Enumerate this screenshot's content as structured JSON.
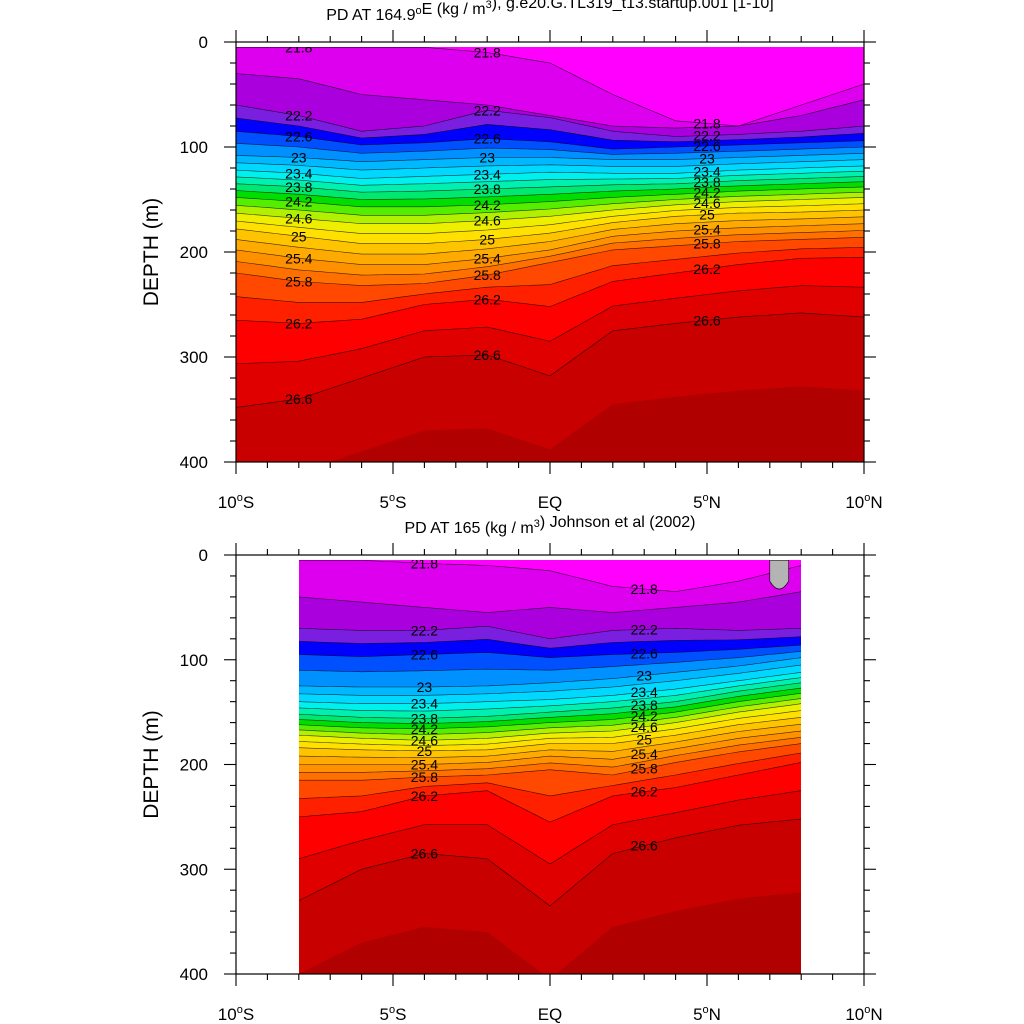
{
  "chart_data": [
    {
      "type": "contour",
      "title_pre": "PD AT 164.9",
      "title_sup1": "o",
      "title_mid": "E (kg / m",
      "title_sup2": "3",
      "title_post": "), g.e20.G.TL319_t13.startup.001 [1-10]",
      "ylabel": "DEPTH (m)",
      "xlim": [
        -10,
        10
      ],
      "ylim": [
        400,
        0
      ],
      "y_reversed": true,
      "x_ticks": [
        {
          "value": -10,
          "num": "10",
          "hemi": "S"
        },
        {
          "value": -5,
          "num": "5",
          "hemi": "S"
        },
        {
          "value": 0,
          "num": "EQ",
          "hemi": ""
        },
        {
          "value": 5,
          "num": "5",
          "hemi": "N"
        },
        {
          "value": 10,
          "num": "10",
          "hemi": "N"
        }
      ],
      "y_ticks": [
        0,
        100,
        200,
        300,
        400
      ],
      "data_lon_range": [
        -10,
        10
      ],
      "levels": [
        21.8,
        22.0,
        22.2,
        22.4,
        22.6,
        22.8,
        23.0,
        23.2,
        23.4,
        23.6,
        23.8,
        24.0,
        24.2,
        24.4,
        24.6,
        24.8,
        25.0,
        25.2,
        25.4,
        25.6,
        25.8,
        26.0,
        26.2,
        26.4,
        26.6,
        26.8
      ],
      "colors": [
        "#ff00ff",
        "#dd00ee",
        "#aa00dd",
        "#7a1fe0",
        "#0000ff",
        "#0050ff",
        "#0090ff",
        "#00b8ff",
        "#00d8ff",
        "#00f0ee",
        "#00f0b0",
        "#00e870",
        "#00dd00",
        "#55ee00",
        "#b0f000",
        "#eeee00",
        "#ffe000",
        "#ffc400",
        "#ffaa00",
        "#ff9000",
        "#ff7000",
        "#ff4800",
        "#ff2000",
        "#ff0000",
        "#e00000",
        "#c80000",
        "#b00000"
      ],
      "isopycnal_depths": {
        "x": [
          -10,
          -8,
          -6,
          -4,
          -2,
          0,
          2,
          4,
          6,
          8,
          10
        ],
        "rows": [
          {
            "level": 21.8,
            "depths": [
              5,
              5,
              5,
              5,
              10,
              20,
              50,
              75,
              80,
              60,
              40
            ]
          },
          {
            "level": 22.0,
            "depths": [
              30,
              35,
              50,
              55,
              60,
              70,
              80,
              82,
              80,
              70,
              55
            ]
          },
          {
            "level": 22.2,
            "depths": [
              60,
              70,
              85,
              80,
              65,
              72,
              85,
              90,
              88,
              85,
              80
            ]
          },
          {
            "level": 22.6,
            "depths": [
              85,
              90,
              98,
              96,
              92,
              95,
              102,
              100,
              98,
              96,
              94
            ]
          },
          {
            "level": 23.0,
            "depths": [
              108,
              110,
              114,
              112,
              110,
              110,
              112,
              112,
              110,
              108,
              106
            ]
          },
          {
            "level": 23.4,
            "depths": [
              122,
              125,
              130,
              128,
              126,
              124,
              125,
              125,
              122,
              120,
              118
            ]
          },
          {
            "level": 23.8,
            "depths": [
              135,
              138,
              143,
              142,
              140,
              138,
              136,
              135,
              132,
              130,
              128
            ]
          },
          {
            "level": 24.2,
            "depths": [
              148,
              152,
              157,
              157,
              155,
              152,
              148,
              145,
              142,
              140,
              138
            ]
          },
          {
            "level": 24.6,
            "depths": [
              163,
              168,
              173,
              173,
              170,
              166,
              160,
              155,
              152,
              150,
              148
            ]
          },
          {
            "level": 25.0,
            "depths": [
              178,
              185,
              192,
              192,
              188,
              182,
              172,
              166,
              163,
              162,
              160
            ]
          },
          {
            "level": 25.4,
            "depths": [
              198,
              206,
              212,
              212,
              206,
              198,
              185,
              180,
              177,
              175,
              173
            ]
          },
          {
            "level": 25.8,
            "depths": [
              220,
              228,
              232,
              230,
              222,
              210,
              198,
              194,
              190,
              188,
              186
            ]
          },
          {
            "level": 26.2,
            "depths": [
              265,
              268,
              264,
              250,
              245,
              252,
              228,
              220,
              212,
              206,
              205
            ]
          },
          {
            "level": 26.6,
            "depths": [
              348,
              340,
              320,
              300,
              298,
              318,
              275,
              268,
              262,
              258,
              262
            ]
          }
        ]
      },
      "contour_labels": [
        "21.8",
        "22.2",
        "22.6",
        "23",
        "23.4",
        "23.8",
        "24.2",
        "24.6",
        "25",
        "25.4",
        "25.8",
        "26.2",
        "26.6"
      ]
    },
    {
      "type": "contour",
      "title_pre": "PD AT 165 (kg / m",
      "title_sup1": "",
      "title_mid": "",
      "title_sup2": "3",
      "title_post": ") Johnson et al (2002)",
      "ylabel": "DEPTH (m)",
      "xlim": [
        -10,
        10
      ],
      "ylim": [
        400,
        0
      ],
      "y_reversed": true,
      "x_ticks": [
        {
          "value": -10,
          "num": "10",
          "hemi": "S"
        },
        {
          "value": -5,
          "num": "5",
          "hemi": "S"
        },
        {
          "value": 0,
          "num": "EQ",
          "hemi": ""
        },
        {
          "value": 5,
          "num": "5",
          "hemi": "N"
        },
        {
          "value": 10,
          "num": "10",
          "hemi": "N"
        }
      ],
      "y_ticks": [
        0,
        100,
        200,
        300,
        400
      ],
      "data_lon_range": [
        -8,
        8
      ],
      "levels": [
        21.8,
        22.0,
        22.2,
        22.4,
        22.6,
        22.8,
        23.0,
        23.2,
        23.4,
        23.6,
        23.8,
        24.0,
        24.2,
        24.4,
        24.6,
        24.8,
        25.0,
        25.2,
        25.4,
        25.6,
        25.8,
        26.0,
        26.2,
        26.4,
        26.6,
        26.8
      ],
      "colors": [
        "#ff00ff",
        "#dd00ee",
        "#aa00dd",
        "#7a1fe0",
        "#0000ff",
        "#0050ff",
        "#0090ff",
        "#00b8ff",
        "#00d8ff",
        "#00f0ee",
        "#00f0b0",
        "#00e870",
        "#00dd00",
        "#55ee00",
        "#b0f000",
        "#eeee00",
        "#ffe000",
        "#ffc400",
        "#ffaa00",
        "#ff9000",
        "#ff7000",
        "#ff4800",
        "#ff2000",
        "#ff0000",
        "#e00000",
        "#c80000",
        "#b00000"
      ],
      "missing_color": "#b4b4b4",
      "isopycnal_depths": {
        "x": [
          -8,
          -6,
          -4,
          -2,
          0,
          2,
          4,
          6,
          8
        ],
        "rows": [
          {
            "level": 21.8,
            "depths": [
              5,
              5,
              8,
              10,
              15,
              30,
              35,
              25,
              10
            ]
          },
          {
            "level": 22.0,
            "depths": [
              40,
              45,
              50,
              55,
              50,
              55,
              50,
              45,
              35
            ]
          },
          {
            "level": 22.2,
            "depths": [
              70,
              72,
              72,
              68,
              80,
              72,
              70,
              72,
              70
            ]
          },
          {
            "level": 22.6,
            "depths": [
              95,
              97,
              95,
              93,
              98,
              95,
              93,
              90,
              86
            ]
          },
          {
            "level": 23.0,
            "depths": [
              125,
              126,
              126,
              125,
              122,
              118,
              112,
              106,
              98
            ]
          },
          {
            "level": 23.4,
            "depths": [
              140,
              142,
              142,
              140,
              138,
              134,
              128,
              120,
              112
            ]
          },
          {
            "level": 23.8,
            "depths": [
              152,
              155,
              156,
              154,
              150,
              146,
              140,
              130,
              122
            ]
          },
          {
            "level": 24.2,
            "depths": [
              162,
              165,
              166,
              164,
              160,
              157,
              150,
              140,
              132
            ]
          },
          {
            "level": 24.6,
            "depths": [
              172,
              175,
              177,
              175,
              170,
              168,
              160,
              150,
              142
            ]
          },
          {
            "level": 25.0,
            "depths": [
              184,
              186,
              187,
              186,
              180,
              180,
              172,
              162,
              155
            ]
          },
          {
            "level": 25.4,
            "depths": [
              200,
              200,
              200,
              198,
              192,
              195,
              185,
              175,
              168
            ]
          },
          {
            "level": 25.8,
            "depths": [
              215,
              215,
              212,
              210,
              205,
              210,
              198,
              188,
              180
            ]
          },
          {
            "level": 26.2,
            "depths": [
              250,
              245,
              230,
              225,
              255,
              230,
              222,
              210,
              198
            ]
          },
          {
            "level": 26.6,
            "depths": [
              330,
              300,
              285,
              290,
              335,
              285,
              270,
              258,
              252
            ]
          }
        ]
      },
      "contour_labels": [
        "21.8",
        "22.2",
        "22.6",
        "23",
        "23.4",
        "23.8",
        "24.2",
        "24.6",
        "25",
        "25.4",
        "25.8",
        "26.2",
        "26.6"
      ]
    }
  ]
}
